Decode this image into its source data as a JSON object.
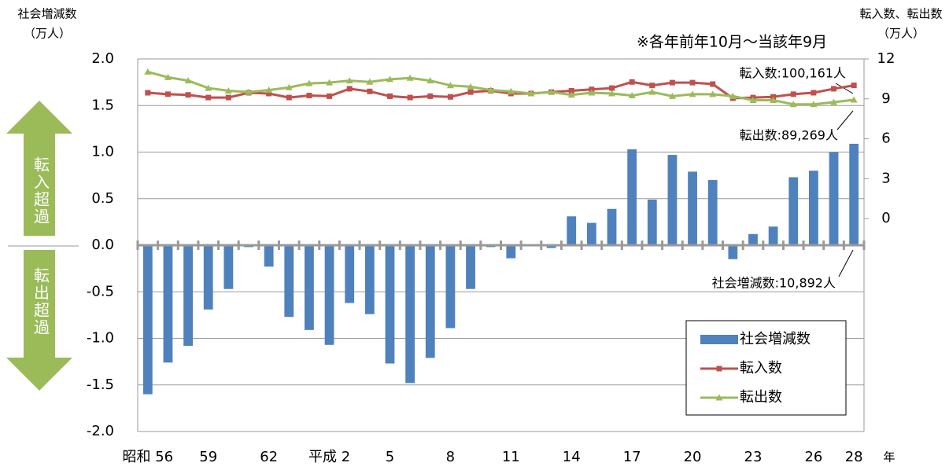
{
  "chart_data": {
    "type": "bar",
    "y_label": "社会増減数",
    "y_unit": "（万人）",
    "y2_label": "転入数、転出数",
    "y2_unit": "（万人）",
    "x_unit": "年",
    "period_note": "※各年前年10月～当該年9月",
    "annotations": [
      "転入数:100,161人",
      "転出数:89,269人",
      "社会増減数:10,892人"
    ],
    "side_labels": [
      "転入超過",
      "転出超過"
    ],
    "categories": [
      "昭和 56",
      null,
      null,
      "59",
      null,
      null,
      "62",
      null,
      null,
      "平成 2",
      null,
      null,
      "5",
      null,
      null,
      "8",
      null,
      null,
      "11",
      null,
      null,
      "14",
      null,
      null,
      "17",
      null,
      null,
      "20",
      null,
      null,
      "23",
      null,
      null,
      "26",
      null,
      "28"
    ],
    "ylim": [
      -2,
      2
    ],
    "yticks": [
      {
        "value": 2,
        "label": "2.0"
      },
      {
        "value": 1.5,
        "label": "1.5"
      },
      {
        "value": 1,
        "label": "1.0"
      },
      {
        "value": 0.5,
        "label": "0.5"
      },
      {
        "value": 0,
        "label": "0.0"
      },
      {
        "value": -0.5,
        "label": "-0.5"
      },
      {
        "value": -1,
        "label": "-1.0"
      },
      {
        "value": -1.5,
        "label": "-1.5"
      },
      {
        "value": -2,
        "label": "-2.0"
      }
    ],
    "y2lim": [
      -16,
      12
    ],
    "y2ticks": [
      12,
      9,
      6,
      3,
      0
    ],
    "grid": true,
    "legend": "lower right",
    "series": [
      {
        "name": "社会増減数",
        "type": "bar",
        "color": "#4f81bd",
        "values": [
          -1.6,
          -1.26,
          -1.08,
          -0.69,
          -0.47,
          -0.02,
          -0.23,
          -0.77,
          -0.91,
          -1.07,
          -0.62,
          -0.74,
          -1.27,
          -1.48,
          -1.21,
          -0.89,
          -0.47,
          -0.02,
          -0.14,
          -0.01,
          -0.03,
          0.31,
          0.24,
          0.39,
          1.03,
          0.49,
          0.97,
          0.79,
          0.7,
          -0.15,
          0.12,
          0.2,
          0.73,
          0.8,
          1.0,
          1.0892
        ]
      },
      {
        "name": "転入数",
        "type": "line",
        "color": "#c0504d",
        "axis": "y2",
        "marker": "square",
        "values": [
          9.46,
          9.35,
          9.3,
          9.1,
          9.1,
          9.46,
          9.4,
          9.1,
          9.25,
          9.2,
          9.76,
          9.56,
          9.2,
          9.1,
          9.2,
          9.15,
          9.51,
          9.61,
          9.4,
          9.4,
          9.51,
          9.61,
          9.71,
          9.81,
          10.27,
          10.01,
          10.22,
          10.22,
          10.11,
          9.05,
          9.1,
          9.15,
          9.35,
          9.46,
          9.76,
          10.0161
        ]
      },
      {
        "name": "転出数",
        "type": "line",
        "color": "#9bbb59",
        "axis": "y2",
        "marker": "triangle",
        "values": [
          11.03,
          10.62,
          10.37,
          9.81,
          9.61,
          9.51,
          9.66,
          9.86,
          10.16,
          10.22,
          10.37,
          10.27,
          10.47,
          10.57,
          10.37,
          10.01,
          9.91,
          9.66,
          9.56,
          9.4,
          9.51,
          9.3,
          9.46,
          9.4,
          9.25,
          9.51,
          9.2,
          9.35,
          9.35,
          9.2,
          8.9,
          8.9,
          8.59,
          8.59,
          8.75,
          8.9269
        ]
      }
    ]
  }
}
